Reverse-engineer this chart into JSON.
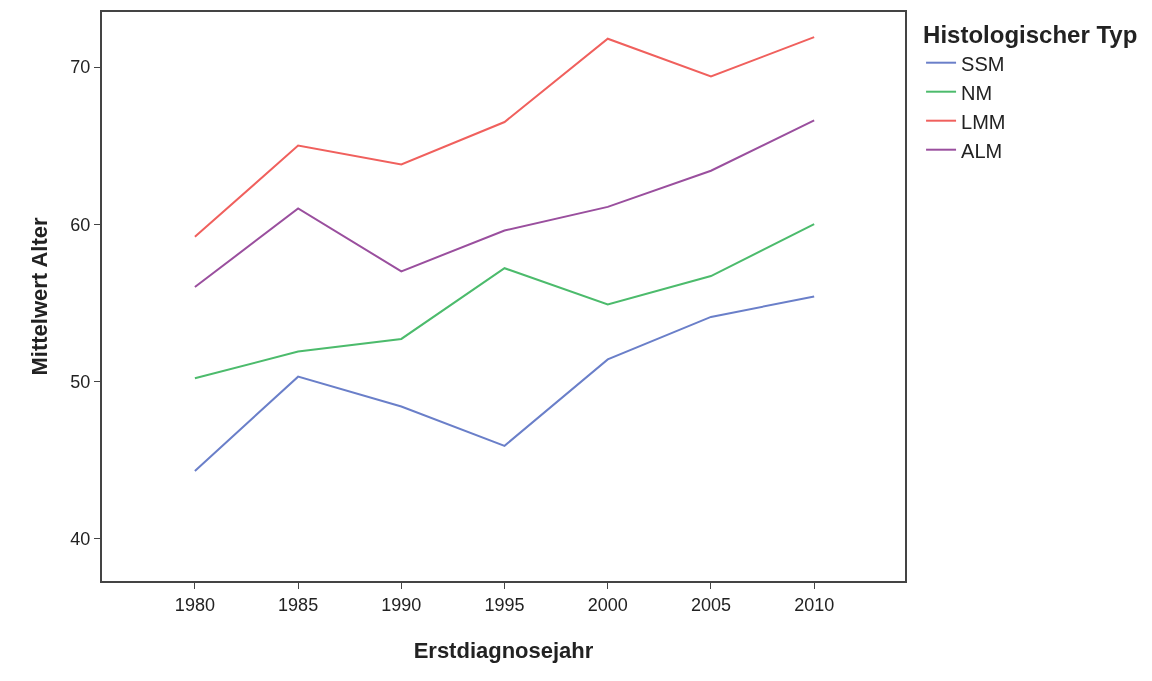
{
  "chart_data": {
    "type": "line",
    "xlabel": "Erstdiagnosejahr",
    "ylabel": "Mittelwert Alter",
    "legend_title": "Histologischer Typ",
    "legend": "right",
    "grid": false,
    "marker": "none",
    "line_style": "solid",
    "x": [
      1980,
      1985,
      1990,
      1995,
      2000,
      2005,
      2010
    ],
    "xlim": [
      1975.5,
      2014.4
    ],
    "xticks": [
      1980,
      1985,
      1990,
      1995,
      2000,
      2005,
      2010
    ],
    "ylim": [
      37.3,
      73.5
    ],
    "yticks": [
      40,
      50,
      60,
      70
    ],
    "series": [
      {
        "name": "SSM",
        "color": "#6a7fc9",
        "values": [
          44.3,
          50.3,
          48.4,
          45.9,
          51.4,
          54.1,
          55.4
        ]
      },
      {
        "name": "NM",
        "color": "#4cbb6c",
        "values": [
          50.2,
          51.9,
          52.7,
          57.2,
          54.9,
          56.7,
          60.0
        ]
      },
      {
        "name": "LMM",
        "color": "#f0605d",
        "values": [
          59.2,
          65.0,
          63.8,
          66.5,
          71.8,
          69.4,
          71.9
        ]
      },
      {
        "name": "ALM",
        "color": "#9a4f9e",
        "values": [
          56.0,
          61.0,
          57.0,
          59.6,
          61.1,
          63.4,
          66.6
        ]
      }
    ]
  }
}
